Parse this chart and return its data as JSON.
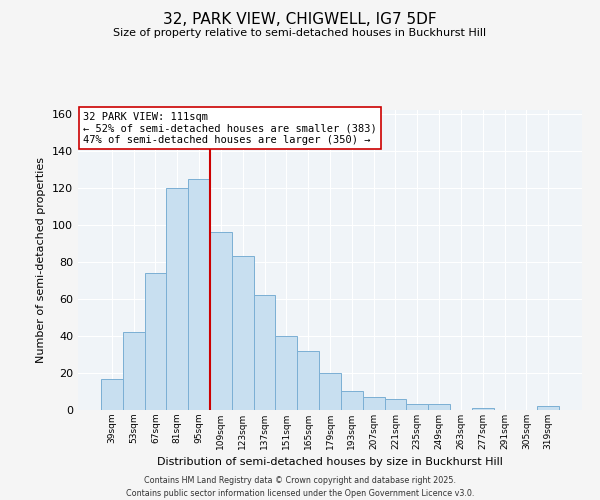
{
  "title1": "32, PARK VIEW, CHIGWELL, IG7 5DF",
  "title2": "Size of property relative to semi-detached houses in Buckhurst Hill",
  "xlabel": "Distribution of semi-detached houses by size in Buckhurst Hill",
  "ylabel": "Number of semi-detached properties",
  "categories": [
    "39sqm",
    "53sqm",
    "67sqm",
    "81sqm",
    "95sqm",
    "109sqm",
    "123sqm",
    "137sqm",
    "151sqm",
    "165sqm",
    "179sqm",
    "193sqm",
    "207sqm",
    "221sqm",
    "235sqm",
    "249sqm",
    "263sqm",
    "277sqm",
    "291sqm",
    "305sqm",
    "319sqm"
  ],
  "values": [
    17,
    42,
    74,
    120,
    125,
    96,
    83,
    62,
    40,
    32,
    20,
    10,
    7,
    6,
    3,
    3,
    0,
    1,
    0,
    0,
    2
  ],
  "bar_color": "#c8dff0",
  "bar_edge_color": "#7bafd4",
  "vline_color": "#cc0000",
  "vline_bar_index": 5,
  "annotation_title": "32 PARK VIEW: 111sqm",
  "annotation_line1": "← 52% of semi-detached houses are smaller (383)",
  "annotation_line2": "47% of semi-detached houses are larger (350) →",
  "ylim": [
    0,
    162
  ],
  "yticks": [
    0,
    20,
    40,
    60,
    80,
    100,
    120,
    140,
    160
  ],
  "footer1": "Contains HM Land Registry data © Crown copyright and database right 2025.",
  "footer2": "Contains public sector information licensed under the Open Government Licence v3.0.",
  "background_color": "#f5f5f5",
  "plot_bg_color": "#f0f4f8",
  "grid_color": "#ffffff"
}
